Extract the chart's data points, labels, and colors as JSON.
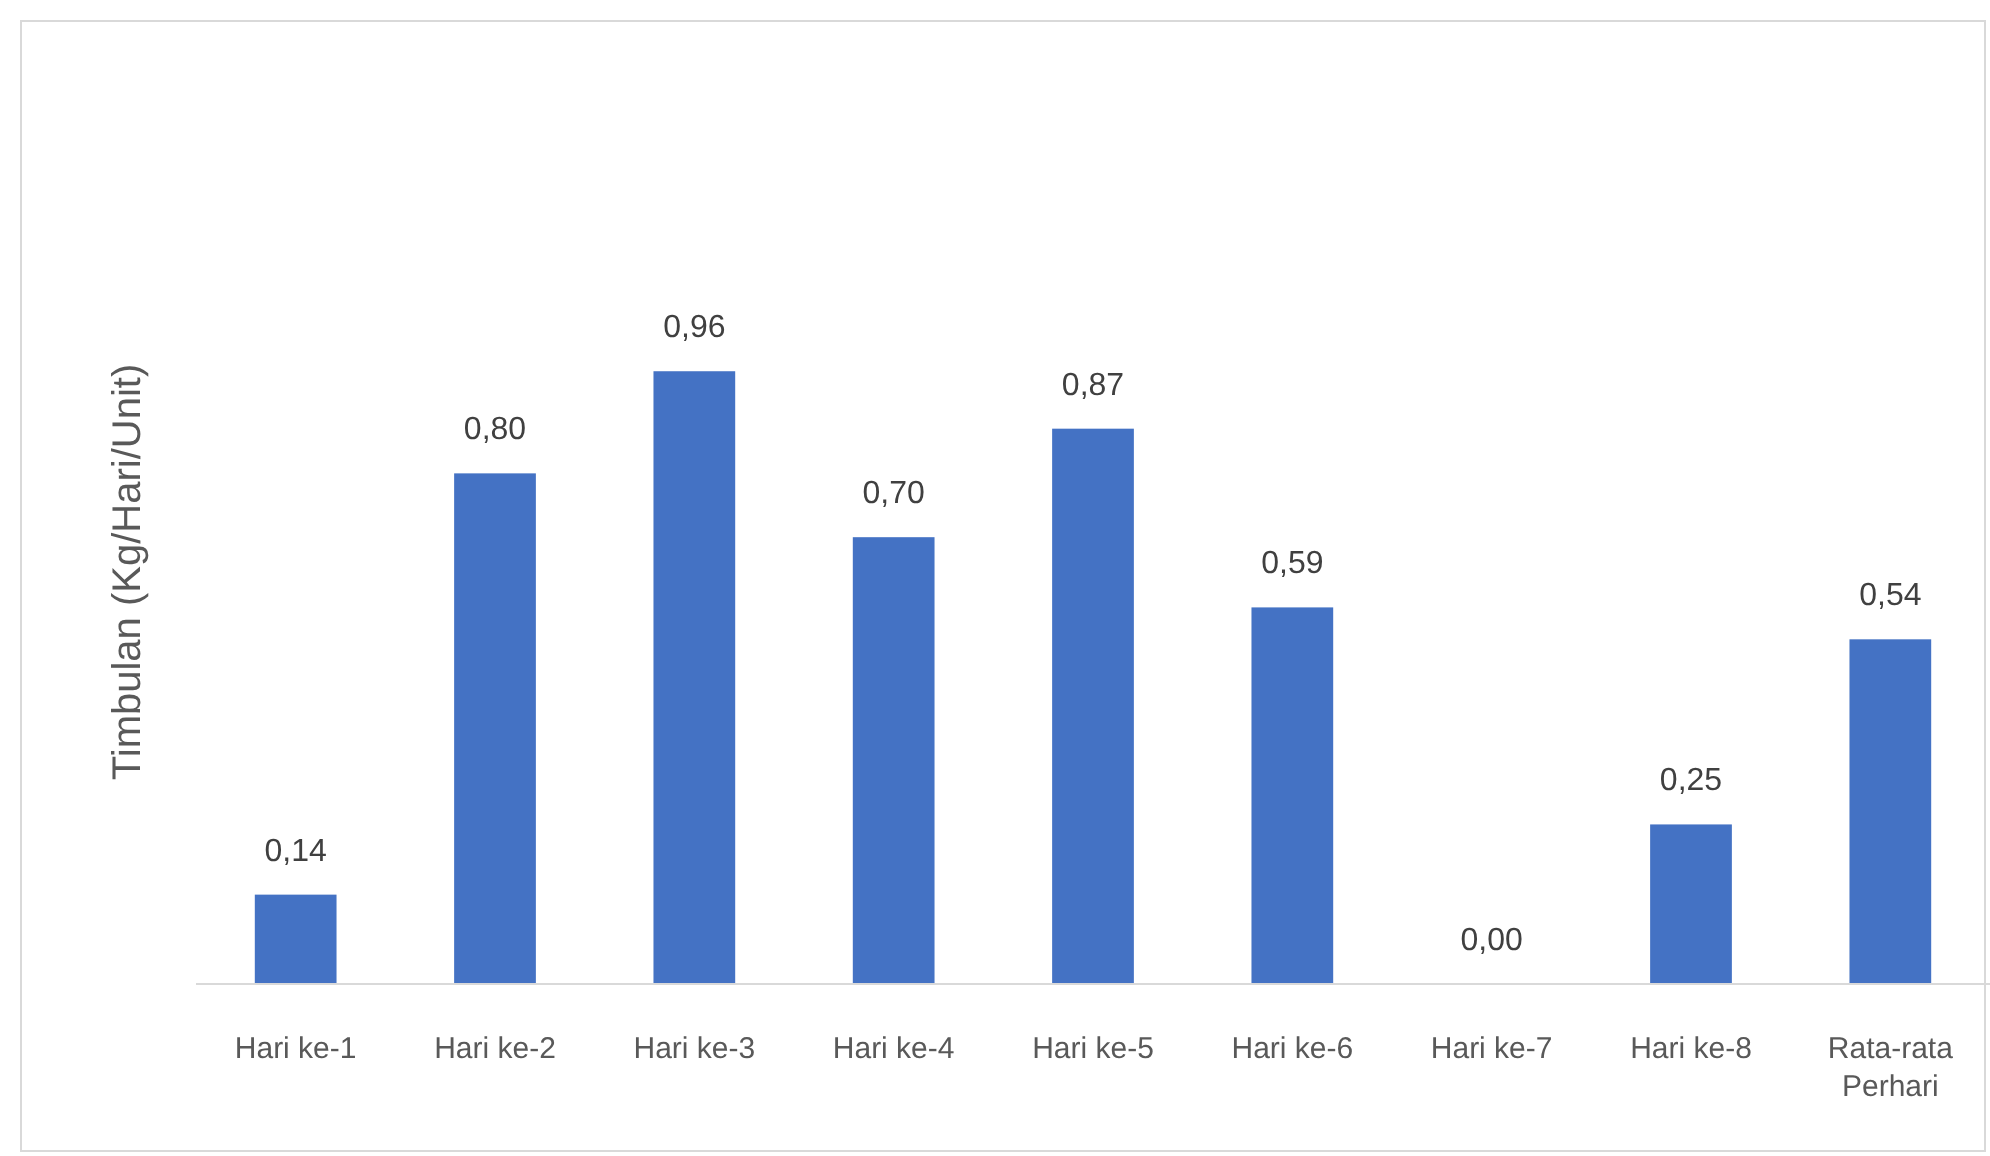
{
  "chart_data": {
    "type": "bar",
    "ylabel": "Timbulan  (Kg/Hari/Unit)",
    "categories": [
      "Hari ke-1",
      "Hari ke-2",
      "Hari ke-3",
      "Hari ke-4",
      "Hari ke-5",
      "Hari ke-6",
      "Hari ke-7",
      "Hari ke-8",
      "Rata-rata Perhari"
    ],
    "values": [
      0.14,
      0.8,
      0.96,
      0.7,
      0.87,
      0.59,
      0.0,
      0.25,
      0.54
    ],
    "value_labels": [
      "0,14",
      "0,80",
      "0,96",
      "0,70",
      "0,87",
      "0,59",
      "0,00",
      "0,25",
      "0,54"
    ],
    "color": "#4472c4"
  }
}
